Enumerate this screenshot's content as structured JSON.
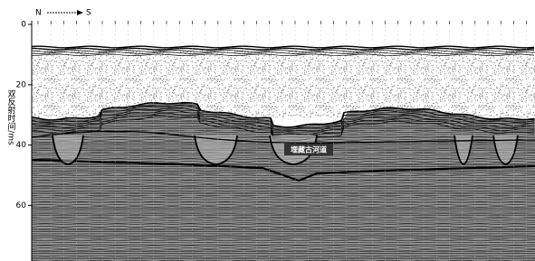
{
  "direction": {
    "start": "N",
    "end": "S"
  },
  "y_axis": {
    "label": "双反射时间/ms",
    "ticks": [
      0,
      20,
      40,
      60
    ],
    "range": [
      0,
      78.5
    ]
  },
  "annotation": "埋藏古河道"
}
